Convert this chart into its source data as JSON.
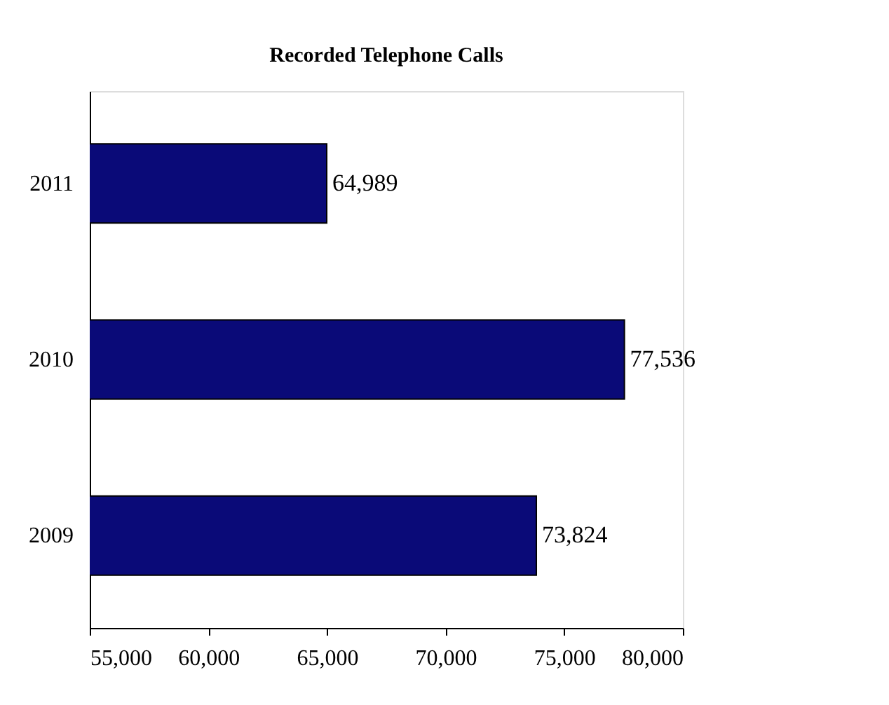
{
  "chart_data": {
    "type": "bar",
    "orientation": "horizontal",
    "title": "Recorded Telephone Calls",
    "categories": [
      "2011",
      "2010",
      "2009"
    ],
    "values": [
      64989,
      77536,
      73824
    ],
    "color": "#0a0a78",
    "value_labels": [
      "64,989",
      "77,536",
      "73,824"
    ],
    "xlim": [
      55000,
      80000
    ],
    "xticks": [
      {
        "value": 55000,
        "label": "55,000"
      },
      {
        "value": 60000,
        "label": "60,000"
      },
      {
        "value": 65000,
        "label": "65,000"
      },
      {
        "value": 70000,
        "label": "70,000"
      },
      {
        "value": 75000,
        "label": "75,000"
      },
      {
        "value": 80000,
        "label": "80,000"
      }
    ],
    "grid": false
  }
}
